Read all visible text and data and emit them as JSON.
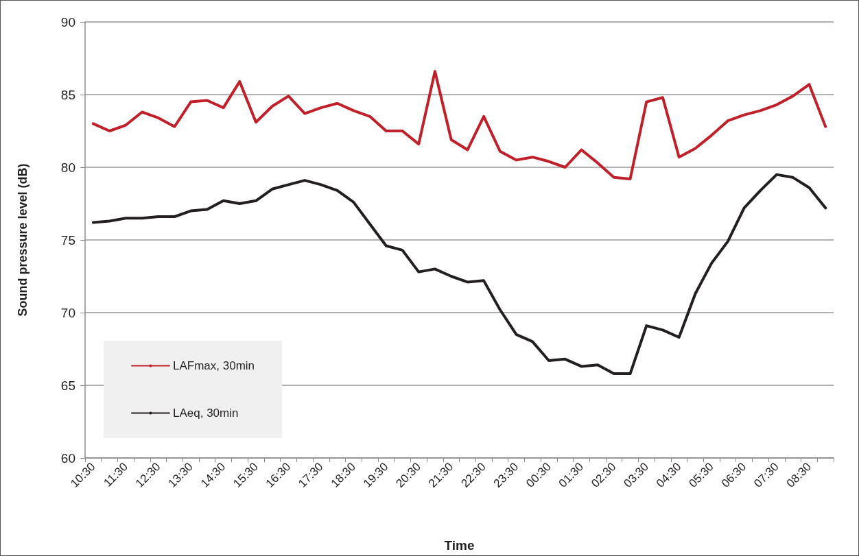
{
  "chart_data": {
    "type": "line",
    "xlabel": "Time",
    "ylabel": "Sound pressure level (dB)",
    "categories": [
      "10:30",
      null,
      "11:30",
      null,
      "12:30",
      null,
      "13:30",
      null,
      "14:30",
      null,
      "15:30",
      null,
      "16:30",
      null,
      "17:30",
      null,
      "18:30",
      null,
      "19:30",
      null,
      "20:30",
      null,
      "21:30",
      null,
      "22:30",
      null,
      "23:30",
      null,
      "00:30",
      null,
      "01:30",
      null,
      "02:30",
      null,
      "03:30",
      null,
      "04:30",
      null,
      "05:30",
      null,
      "06:30",
      null,
      "07:30",
      null,
      "08:30",
      null
    ],
    "series": [
      {
        "name": "LAFmax, 30min",
        "color": "#c1202a",
        "values": [
          83.0,
          82.5,
          82.9,
          83.8,
          83.4,
          82.8,
          84.5,
          84.6,
          84.1,
          85.9,
          83.1,
          84.2,
          84.9,
          83.7,
          84.1,
          84.4,
          83.9,
          83.5,
          82.5,
          82.5,
          81.6,
          86.6,
          81.9,
          81.2,
          83.5,
          81.1,
          80.5,
          80.7,
          80.4,
          80.0,
          81.2,
          80.3,
          79.3,
          79.2,
          84.5,
          84.8,
          80.7,
          81.3,
          82.2,
          83.2,
          83.6,
          83.9,
          84.3,
          84.9,
          85.7,
          82.8
        ]
      },
      {
        "name": "LAeq, 30min",
        "color": "#231f20",
        "values": [
          76.2,
          76.3,
          76.5,
          76.5,
          76.6,
          76.6,
          77.0,
          77.1,
          77.7,
          77.5,
          77.7,
          78.5,
          78.8,
          79.1,
          78.8,
          78.4,
          77.6,
          76.1,
          74.6,
          74.3,
          72.8,
          73.0,
          72.5,
          72.1,
          72.2,
          70.2,
          68.5,
          68.0,
          66.7,
          66.8,
          66.3,
          66.4,
          65.8,
          65.8,
          69.1,
          68.8,
          68.3,
          71.3,
          73.4,
          74.9,
          77.2,
          78.4,
          79.5,
          79.3,
          78.6,
          77.2
        ]
      }
    ],
    "ylim": [
      60,
      90
    ],
    "yticks": [
      60,
      65,
      70,
      75,
      80,
      85,
      90
    ],
    "grid": "y",
    "legend": "bottom left",
    "marker": "none",
    "line_style": "solid"
  }
}
